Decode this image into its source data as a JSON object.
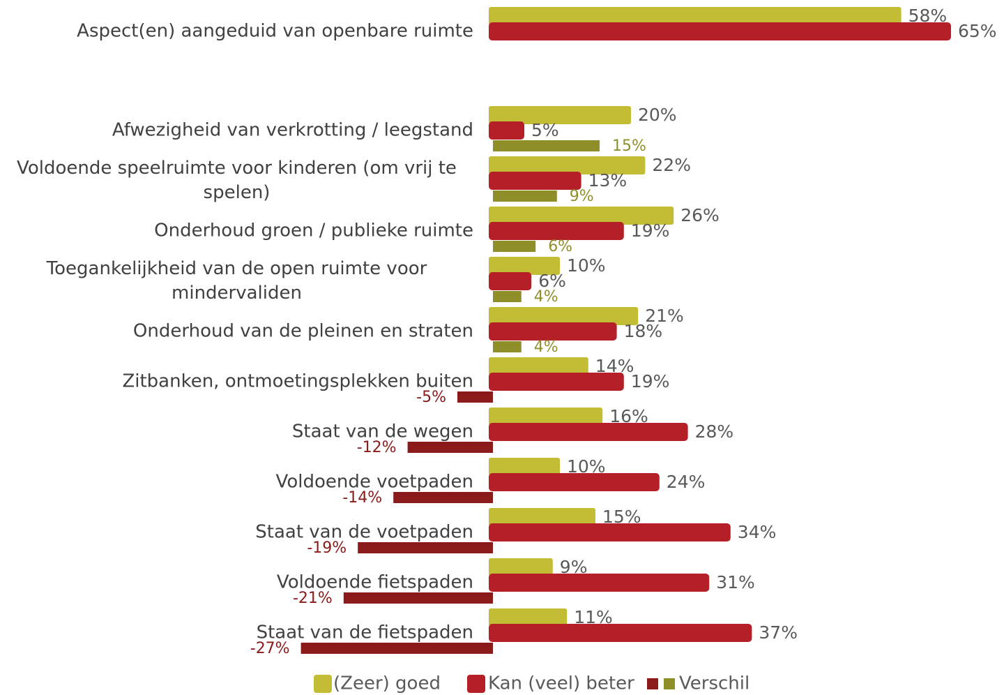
{
  "chart_data": {
    "type": "bar",
    "orientation": "horizontal",
    "categories": [
      "Aspect(en) aangeduid van openbare ruimte",
      "Afwezigheid van verkrotting / leegstand",
      "Voldoende speelruimte voor kinderen (om vrij te spelen)",
      "Onderhoud groen / publieke ruimte",
      "Toegankelijkheid van de open ruimte voor mindervaliden",
      "Onderhoud van de pleinen en straten",
      "Zitbanken, ontmoetingsplekken buiten",
      "Staat van de wegen",
      "Voldoende voetpaden",
      "Staat van de voetpaden",
      "Voldoende fietspaden",
      "Staat van de fietspaden"
    ],
    "series": [
      {
        "name": "(Zeer) goed",
        "color": "#c3bd35",
        "values": [
          58,
          20,
          22,
          26,
          10,
          21,
          14,
          16,
          10,
          15,
          9,
          11
        ],
        "value_labels": [
          "58%",
          "20%",
          "22%",
          "26%",
          "10%",
          "21%",
          "14%",
          "16%",
          "10%",
          "15%",
          "9%",
          "11%"
        ]
      },
      {
        "name": "Kan (veel) beter",
        "color": "#b52028",
        "values": [
          65,
          5,
          13,
          19,
          6,
          18,
          19,
          28,
          24,
          34,
          31,
          37
        ],
        "value_labels": [
          "65%",
          "5%",
          "13%",
          "19%",
          "6%",
          "18%",
          "19%",
          "28%",
          "24%",
          "34%",
          "31%",
          "37%"
        ]
      },
      {
        "name": "Verschil",
        "color": "#8f8f2a",
        "negative_color": "#8b1a1a",
        "values": [
          null,
          15,
          9,
          6,
          4,
          4,
          -5,
          -12,
          -14,
          -19,
          -21,
          -27
        ],
        "value_labels": [
          null,
          "15%",
          "9%",
          "6%",
          "4%",
          "4%",
          "-5%",
          "-12%",
          "-14%",
          "-19%",
          "-21%",
          "-27%"
        ]
      }
    ],
    "legend": "bottom"
  }
}
